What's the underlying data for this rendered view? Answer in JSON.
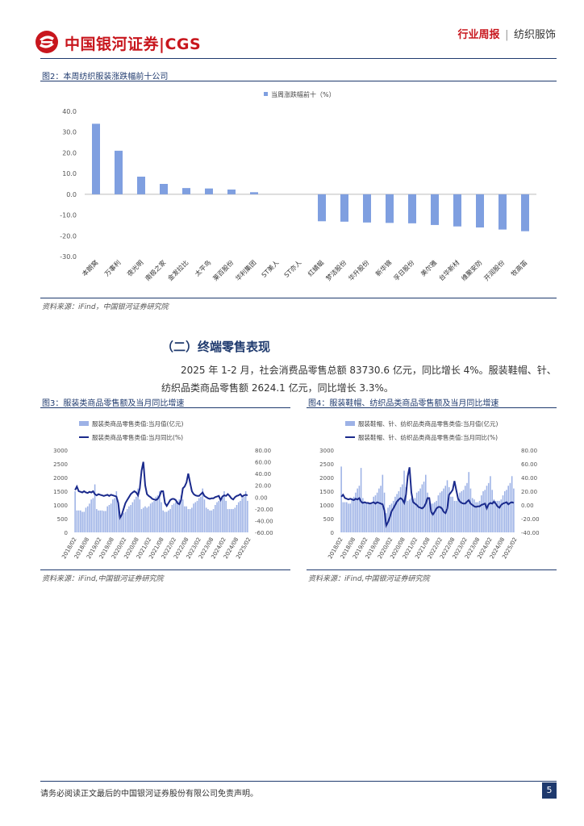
{
  "header": {
    "brand": "中国银河证券|CGS",
    "report_type": "行业周报",
    "separator": "|",
    "industry": "纺织服饰"
  },
  "figure2": {
    "title": "图2：本周纺织服装涨跌幅前十公司",
    "source": "资料来源：iFind，中国银河证券研究院"
  },
  "section": {
    "title": "（二）终端零售表现",
    "paragraph": "2025 年 1-2 月，社会消费品零售总额 83730.6 亿元，同比增长 4%。服装鞋帽、针、纺织品类商品零售额 2624.1 亿元，同比增长 3.3%。"
  },
  "figure3": {
    "title": "图3：服装类商品零售额及当月同比增速",
    "source": "资料来源：iFind,中国银河证券研究院"
  },
  "figure4": {
    "title": "图4：服装鞋帽、纺织品类商品零售额及当月同比增速",
    "source": "资料来源：iFind,中国银河证券研究院"
  },
  "footer": {
    "disclaimer": "请务必阅读正文最后的中国银河证券股份有限公司免责声明。",
    "page": "5"
  },
  "chart_data": [
    {
      "type": "bar",
      "legend": "当周涨跌幅前十（%）",
      "categories": [
        "本朗窝",
        "万事利",
        "夜光明",
        "南极之家",
        "金发拉比",
        "太平鸟",
        "莱百股份",
        "华利集团",
        "ST美人",
        "ST亦人",
        "红蜻蜓",
        "梦洁股份",
        "华升股份",
        "新华锦",
        "孚日股份",
        "美尔雅",
        "台华新材",
        "维聚安防",
        "开润股份",
        "牧高笛"
      ],
      "values": [
        34.0,
        21.0,
        8.5,
        5.0,
        3.0,
        2.8,
        2.3,
        1.0,
        0,
        0,
        -13.0,
        -13.2,
        -13.6,
        -13.8,
        -14.0,
        -14.8,
        -15.5,
        -16.0,
        -17.0,
        -17.8
      ],
      "ylim": [
        -30,
        40
      ],
      "yticks": [
        "40.0",
        "30.0",
        "20.0",
        "10.0",
        "0.0",
        "-10.0",
        "-20.0",
        "-30.0"
      ]
    },
    {
      "type": "bar+line",
      "legend": [
        "服装类商品零售类值:当月值(亿元)",
        "服装类商品零售类值:当月同比(%)"
      ],
      "y_left_ticks": [
        "3000",
        "2500",
        "2000",
        "1500",
        "1000",
        "500",
        "0"
      ],
      "y_right_ticks": [
        "80.00",
        "60.00",
        "40.00",
        "20.00",
        "0.00",
        "-20.00",
        "-40.00",
        "-60.00"
      ],
      "ylim_left": [
        0,
        3000
      ],
      "ylim_right": [
        -60,
        80
      ],
      "x_ticks": [
        "2018/02",
        "2018/08",
        "2019/02",
        "2019/08",
        "2020/02",
        "2020/08",
        "2021/02",
        "2021/08",
        "2022/02",
        "2022/08",
        "2023/02",
        "2023/08",
        "2024/02",
        "2024/08",
        "2025/02"
      ],
      "bar_values": [
        1500,
        800,
        800,
        800,
        750,
        750,
        900,
        950,
        1050,
        1200,
        1250,
        1750,
        850,
        800,
        800,
        800,
        780,
        780,
        950,
        1000,
        1050,
        1200,
        1250,
        1500,
        1100,
        500,
        650,
        700,
        750,
        850,
        950,
        1000,
        1100,
        1200,
        1300,
        1600,
        1200,
        850,
        900,
        950,
        900,
        950,
        1050,
        1100,
        1150,
        1300,
        1350,
        1500,
        1100,
        800,
        750,
        750,
        800,
        850,
        1000,
        1050,
        1100,
        1150,
        1200,
        1350,
        1200,
        950,
        950,
        850,
        850,
        900,
        1050,
        1100,
        1150,
        1250,
        1300,
        1600,
        1200,
        900,
        850,
        800,
        800,
        850,
        1000,
        1100,
        1150,
        1250,
        1300,
        1500,
        1150,
        850,
        850,
        850,
        850,
        900,
        1000,
        1100,
        1150,
        1250,
        1300,
        1500,
        1150
      ],
      "line_values": [
        12,
        18,
        10,
        9,
        8,
        10,
        8,
        7,
        9,
        8,
        10,
        5,
        3,
        5,
        4,
        3,
        2,
        3,
        4,
        2,
        4,
        3,
        2,
        1,
        -10,
        -35,
        -30,
        -20,
        -10,
        -5,
        0,
        5,
        8,
        10,
        8,
        3,
        15,
        45,
        60,
        20,
        5,
        2,
        0,
        -3,
        -4,
        -5,
        -3,
        2,
        10,
        10,
        -10,
        -15,
        -10,
        -5,
        -3,
        -3,
        -5,
        -10,
        -12,
        -5,
        15,
        18,
        25,
        40,
        25,
        10,
        5,
        3,
        2,
        2,
        5,
        8,
        2,
        0,
        -2,
        -3,
        -2,
        -2,
        0,
        1,
        2,
        -5,
        1,
        3,
        2,
        5,
        2,
        -2,
        -4,
        0,
        2,
        3,
        5,
        1,
        3,
        4,
        3
      ]
    },
    {
      "type": "bar+line",
      "legend": [
        "服装鞋帽、针、纺织品类商品零售类值:当月值(亿元)",
        "服装鞋帽、针、纺织品类商品零售类值:当月同比(%)"
      ],
      "y_left_ticks": [
        "3000",
        "2500",
        "2000",
        "1500",
        "1000",
        "500",
        "0"
      ],
      "y_right_ticks": [
        "80.00",
        "60.00",
        "40.00",
        "20.00",
        "0.00",
        "-20.00",
        "-40.00"
      ],
      "ylim_left": [
        0,
        3000
      ],
      "ylim_right": [
        -40,
        80
      ],
      "x_ticks": [
        "2018/02",
        "2018/08",
        "2019/02",
        "2019/08",
        "2020/02",
        "2020/08",
        "2021/02",
        "2021/08",
        "2022/02",
        "2022/08",
        "2023/02",
        "2023/08",
        "2024/02",
        "2024/08",
        "2025/02"
      ],
      "bar_values": [
        2400,
        1100,
        1100,
        1100,
        1050,
        1050,
        1250,
        1300,
        1450,
        1600,
        1700,
        2350,
        1250,
        1100,
        1100,
        1100,
        1050,
        1050,
        1300,
        1350,
        1450,
        1600,
        1700,
        2100,
        1450,
        700,
        900,
        1000,
        1050,
        1150,
        1300,
        1400,
        1500,
        1650,
        1750,
        2250,
        1650,
        1150,
        1200,
        1250,
        1200,
        1250,
        1450,
        1500,
        1600,
        1750,
        1850,
        2100,
        1450,
        1100,
        1050,
        1050,
        1100,
        1150,
        1350,
        1450,
        1500,
        1600,
        1700,
        1900,
        1650,
        1300,
        1300,
        1150,
        1150,
        1200,
        1450,
        1500,
        1550,
        1700,
        1800,
        2200,
        1600,
        1250,
        1200,
        1100,
        1100,
        1150,
        1350,
        1500,
        1550,
        1700,
        1800,
        2050,
        1550,
        1200,
        1150,
        1150,
        1150,
        1200,
        1350,
        1500,
        1550,
        1700,
        1800,
        2050,
        1600
      ],
      "line_values": [
        12,
        15,
        10,
        9,
        8,
        9,
        8,
        7,
        9,
        8,
        10,
        5,
        3,
        4,
        3,
        3,
        2,
        3,
        4,
        2,
        4,
        3,
        2,
        1,
        -8,
        -30,
        -25,
        -18,
        -9,
        -5,
        0,
        5,
        8,
        10,
        8,
        3,
        15,
        42,
        55,
        18,
        4,
        2,
        0,
        -3,
        -4,
        -5,
        -3,
        2,
        10,
        10,
        -10,
        -14,
        -10,
        -5,
        -3,
        -3,
        -5,
        -10,
        -12,
        -5,
        15,
        18,
        22,
        35,
        22,
        9,
        5,
        3,
        2,
        2,
        5,
        7,
        2,
        0,
        -2,
        -3,
        -2,
        -2,
        0,
        1,
        2,
        -5,
        1,
        3,
        2,
        5,
        2,
        -2,
        -4,
        0,
        2,
        3,
        4,
        1,
        3,
        4,
        3
      ]
    }
  ]
}
